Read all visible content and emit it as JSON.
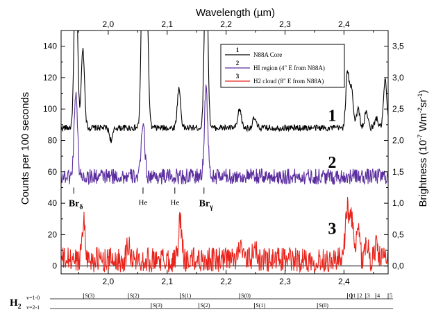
{
  "chart_data": {
    "type": "line",
    "top_axis_title": "Wavelength (µm)",
    "left_axis_title": "Counts per 100 seconds",
    "right_axis_title_main": "Brightness (10",
    "right_axis_title_exp1": "-7",
    "right_axis_title_mid": " Wm",
    "right_axis_title_exp2": "-2",
    "right_axis_title_sr": "sr",
    "right_axis_title_exp3": "-1",
    "right_axis_title_end": ")",
    "xlim": [
      1.92,
      2.475
    ],
    "ylim": [
      -5,
      150
    ],
    "x_ticks": [
      "2,0",
      "2,1",
      "2,2",
      "2,3",
      "2,4"
    ],
    "x_tick_values": [
      2.0,
      2.1,
      2.2,
      2.3,
      2.4
    ],
    "y_ticks": [
      "0",
      "20",
      "40",
      "60",
      "80",
      "100",
      "120",
      "140"
    ],
    "y_tick_values": [
      0,
      20,
      40,
      60,
      80,
      100,
      120,
      140
    ],
    "right_ticks": [
      "0,0",
      "0,5",
      "1,0",
      "1,5",
      "2,0",
      "2,5",
      "3,0",
      "3,5"
    ],
    "right_tick_values": [
      0.0,
      0.5,
      1.0,
      1.5,
      2.0,
      2.5,
      3.0,
      3.5
    ],
    "right_scale_counts_per_unit": 40,
    "series": [
      {
        "name": "N88A Core",
        "number": "1",
        "color": "#000000",
        "baseline": 88,
        "noise": 2,
        "features": [
          {
            "x": 1.945,
            "h": 110
          },
          {
            "x": 1.957,
            "h": 50
          },
          {
            "x": 2.005,
            "h": -8
          },
          {
            "x": 2.059,
            "h": 130
          },
          {
            "x": 2.065,
            "h": 90
          },
          {
            "x": 2.12,
            "h": 25
          },
          {
            "x": 2.166,
            "h": 120
          },
          {
            "x": 2.223,
            "h": 12
          },
          {
            "x": 2.248,
            "h": 6
          },
          {
            "x": 2.406,
            "h": 35
          },
          {
            "x": 2.413,
            "h": 25
          },
          {
            "x": 2.424,
            "h": 12
          },
          {
            "x": 2.438,
            "h": 10
          },
          {
            "x": 2.455,
            "h": 6
          },
          {
            "x": 2.47,
            "h": 30
          }
        ]
      },
      {
        "name": "HI region (4\" E from N88A)",
        "number": "2",
        "color": "#5a2d9e",
        "baseline": 57,
        "noise": 5,
        "features": [
          {
            "x": 1.945,
            "h": 55
          },
          {
            "x": 2.059,
            "h": 36
          },
          {
            "x": 2.166,
            "h": 56
          }
        ]
      },
      {
        "name": "H2 cloud (8\" E from N88A)",
        "number": "3",
        "color": "#e8231b",
        "baseline": 4,
        "noise": 8,
        "features": [
          {
            "x": 1.958,
            "h": 25
          },
          {
            "x": 2.034,
            "h": 10
          },
          {
            "x": 2.122,
            "h": 24
          },
          {
            "x": 2.223,
            "h": 12
          },
          {
            "x": 2.248,
            "h": 8
          },
          {
            "x": 2.405,
            "h": 34
          },
          {
            "x": 2.413,
            "h": 28
          },
          {
            "x": 2.424,
            "h": 18
          },
          {
            "x": 2.438,
            "h": 12
          },
          {
            "x": 2.455,
            "h": 10
          }
        ]
      }
    ],
    "line_labels": [
      {
        "text": "He",
        "x": 2.059
      },
      {
        "text": "He",
        "x": 2.113
      }
    ],
    "br_labels": [
      {
        "text": "Br",
        "sub": "δ",
        "x": 1.945
      },
      {
        "text": "Br",
        "sub": "γ",
        "x": 2.166
      }
    ],
    "h2_name": "H",
    "h2_sub": "2",
    "h2_rows": [
      {
        "label": "v=1-0",
        "lines": [
          {
            "text": "S(3)",
            "x": 1.958
          },
          {
            "text": "S(2)",
            "x": 2.034
          },
          {
            "text": "S(1)",
            "x": 2.122
          },
          {
            "text": "S(0)",
            "x": 2.223
          },
          {
            "text": "Q",
            "x": 2.406
          },
          {
            "text": "1",
            "x": 2.413
          },
          {
            "text": "2",
            "x": 2.424
          },
          {
            "text": "3",
            "x": 2.437
          },
          {
            "text": "4",
            "x": 2.454
          },
          {
            "text": "5",
            "x": 2.475
          }
        ]
      },
      {
        "label": "v=2-1",
        "lines": [
          {
            "text": "S(3)",
            "x": 2.073
          },
          {
            "text": "S(2)",
            "x": 2.154
          },
          {
            "text": "S(1)",
            "x": 2.248
          },
          {
            "text": "S(0)",
            "x": 2.355
          }
        ]
      }
    ]
  }
}
